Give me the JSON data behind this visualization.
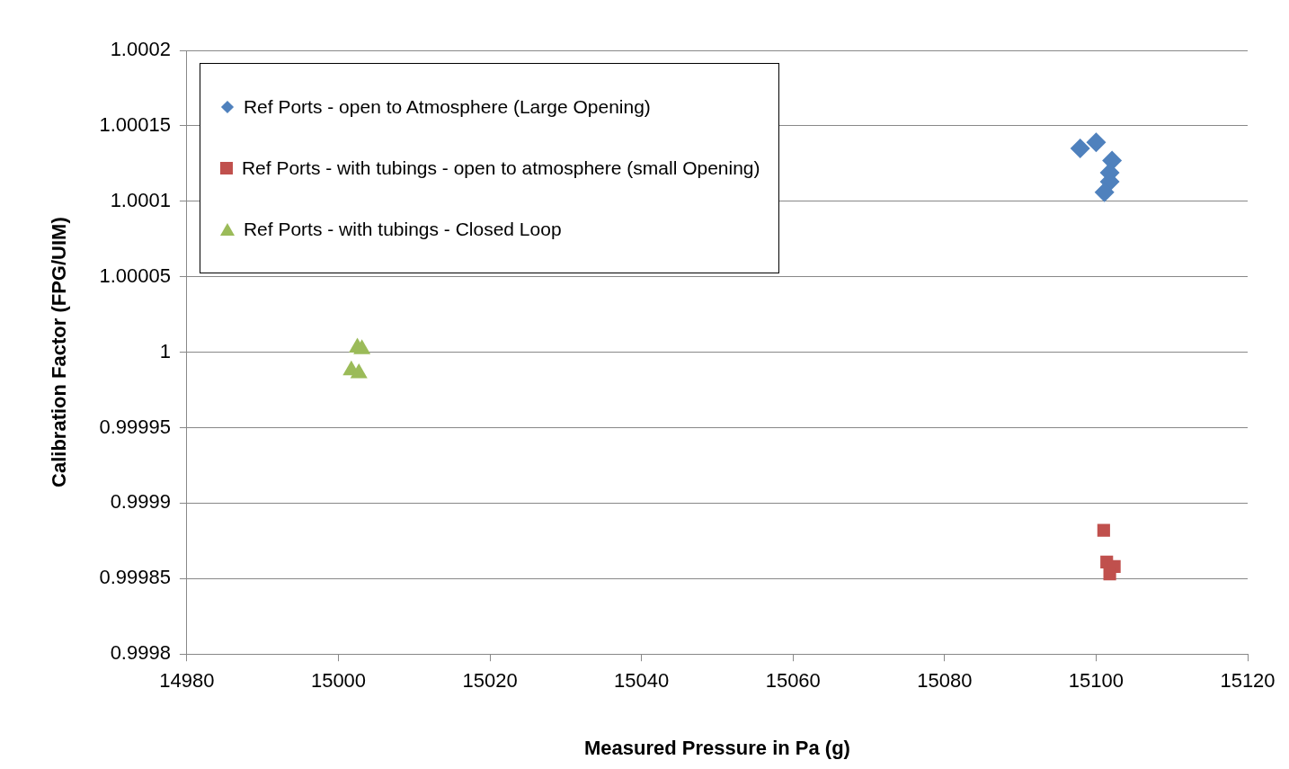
{
  "chart_data": {
    "type": "scatter",
    "xlabel": "Measured Pressure in Pa (g)",
    "ylabel": "Calibration Factor (FPG/UIM)",
    "xlim": [
      14980,
      15120
    ],
    "xticks": [
      14980,
      15000,
      15020,
      15040,
      15060,
      15080,
      15100,
      15120
    ],
    "ylim": [
      0.9998,
      1.0002
    ],
    "yticks": [
      0.9998,
      0.99985,
      0.9999,
      0.99995,
      1,
      1.00005,
      1.0001,
      1.00015,
      1.0002
    ],
    "grid": "y",
    "legend": "top left",
    "series": [
      {
        "name": "Ref Ports - open to Atmosphere (Large Opening)",
        "color": "#4f81bd",
        "marker": "diamond",
        "x": [
          15097.9,
          15100.0,
          15102.1,
          15101.8,
          15101.8,
          15101.1
        ],
        "values": [
          1.000135,
          1.000139,
          1.000127,
          1.000119,
          1.000113,
          1.000106
        ]
      },
      {
        "name": "Ref Ports - with tubings - open to atmosphere (small Opening)",
        "color": "#c0504d",
        "marker": "square",
        "x": [
          15101.0,
          15101.4,
          15102.4,
          15101.8
        ],
        "values": [
          0.999882,
          0.999861,
          0.999858,
          0.999853
        ]
      },
      {
        "name": "Ref Ports - with tubings - Closed Loop",
        "color": "#9bbb59",
        "marker": "triangle",
        "x": [
          15002.5,
          15003.1,
          15001.7,
          15002.7
        ],
        "values": [
          1.000003,
          1.000002,
          0.999988,
          0.999986
        ]
      }
    ]
  }
}
